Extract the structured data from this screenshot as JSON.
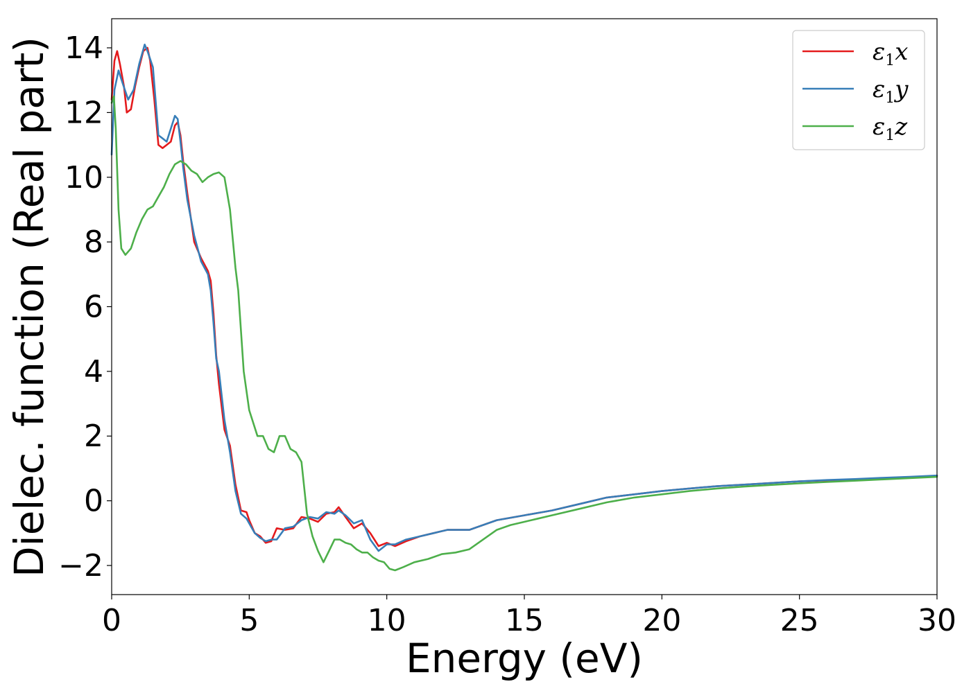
{
  "chart_data": {
    "type": "line",
    "title": "",
    "xlabel": "Energy (eV)",
    "ylabel": "Dielec. function (Real part)",
    "xlim": [
      0,
      30
    ],
    "ylim": [
      -2.9,
      14.9
    ],
    "xticks": [
      0,
      5,
      10,
      15,
      20,
      25,
      30
    ],
    "xtick_labels": [
      "0",
      "5",
      "10",
      "15",
      "20",
      "25",
      "30"
    ],
    "yticks": [
      -2,
      0,
      2,
      4,
      6,
      8,
      10,
      12,
      14
    ],
    "ytick_labels": [
      "−2",
      "0",
      "2",
      "4",
      "6",
      "8",
      "10",
      "12",
      "14"
    ],
    "grid": false,
    "legend_position": "top-right",
    "series": [
      {
        "name": "ε₁x",
        "legend_main": "ε",
        "legend_sub": "1",
        "legend_var": "x",
        "color": "#e41a1c",
        "x": [
          0,
          0.1,
          0.2,
          0.3,
          0.45,
          0.55,
          0.7,
          0.85,
          1.0,
          1.15,
          1.3,
          1.4,
          1.55,
          1.7,
          1.85,
          2.0,
          2.15,
          2.3,
          2.4,
          2.5,
          2.6,
          2.75,
          3.0,
          3.25,
          3.5,
          3.6,
          3.7,
          3.8,
          3.9,
          4.1,
          4.3,
          4.5,
          4.7,
          4.9,
          5.0,
          5.2,
          5.4,
          5.6,
          5.8,
          6.0,
          6.3,
          6.6,
          6.9,
          7.2,
          7.5,
          7.8,
          8.1,
          8.25,
          8.5,
          8.8,
          9.1,
          9.4,
          9.7,
          10.0,
          10.3,
          10.7,
          11.2,
          11.7,
          12.2,
          13.0,
          14.0,
          15.0,
          16.0,
          17.0,
          18.0,
          19.0,
          20.0,
          21.0,
          22.0,
          23.0,
          24.0,
          25.0,
          26.0,
          27.0,
          28.0,
          29.0,
          30.0
        ],
        "y": [
          12.4,
          13.6,
          13.9,
          13.5,
          12.8,
          12.0,
          12.1,
          12.8,
          13.4,
          13.9,
          14.0,
          13.6,
          12.4,
          11.0,
          10.9,
          11.0,
          11.1,
          11.6,
          11.7,
          11.3,
          10.5,
          9.5,
          8.0,
          7.5,
          7.1,
          6.8,
          5.8,
          4.5,
          3.6,
          2.2,
          1.7,
          0.5,
          -0.3,
          -0.35,
          -0.6,
          -1.0,
          -1.1,
          -1.3,
          -1.25,
          -0.85,
          -0.9,
          -0.85,
          -0.5,
          -0.55,
          -0.65,
          -0.4,
          -0.35,
          -0.2,
          -0.5,
          -0.85,
          -0.7,
          -1.0,
          -1.4,
          -1.3,
          -1.4,
          -1.25,
          -1.1,
          -1.0,
          -0.9,
          -0.9,
          -0.6,
          -0.45,
          -0.3,
          -0.1,
          0.1,
          0.2,
          0.3,
          0.38,
          0.45,
          0.5,
          0.55,
          0.6,
          0.63,
          0.66,
          0.7,
          0.73,
          0.77
        ]
      },
      {
        "name": "ε₁y",
        "legend_main": "ε",
        "legend_sub": "1",
        "legend_var": "y",
        "color": "#377eb8",
        "x": [
          0,
          0.1,
          0.25,
          0.4,
          0.6,
          0.8,
          1.0,
          1.2,
          1.3,
          1.5,
          1.7,
          1.85,
          2.0,
          2.15,
          2.3,
          2.4,
          2.5,
          2.6,
          2.75,
          3.0,
          3.25,
          3.5,
          3.6,
          3.7,
          3.8,
          3.9,
          4.1,
          4.3,
          4.5,
          4.7,
          4.9,
          5.0,
          5.2,
          5.4,
          5.6,
          5.8,
          6.0,
          6.3,
          6.6,
          6.9,
          7.2,
          7.5,
          7.8,
          8.1,
          8.25,
          8.5,
          8.8,
          9.1,
          9.4,
          9.7,
          10.0,
          10.3,
          10.7,
          11.2,
          11.7,
          12.2,
          13.0,
          14.0,
          15.0,
          16.0,
          17.0,
          18.0,
          19.0,
          20.0,
          21.0,
          22.0,
          23.0,
          24.0,
          25.0,
          26.0,
          27.0,
          28.0,
          29.0,
          30.0
        ],
        "y": [
          10.7,
          12.7,
          13.3,
          12.9,
          12.4,
          12.7,
          13.5,
          14.1,
          13.9,
          13.4,
          11.3,
          11.2,
          11.1,
          11.5,
          11.9,
          11.8,
          11.1,
          10.3,
          9.3,
          8.2,
          7.4,
          7.0,
          6.5,
          5.5,
          4.4,
          4.0,
          2.5,
          1.5,
          0.3,
          -0.4,
          -0.55,
          -0.7,
          -1.0,
          -1.15,
          -1.25,
          -1.2,
          -1.2,
          -0.85,
          -0.8,
          -0.6,
          -0.5,
          -0.55,
          -0.35,
          -0.4,
          -0.3,
          -0.45,
          -0.7,
          -0.6,
          -1.2,
          -1.55,
          -1.35,
          -1.35,
          -1.2,
          -1.1,
          -1.0,
          -0.9,
          -0.9,
          -0.6,
          -0.45,
          -0.3,
          -0.1,
          0.1,
          0.2,
          0.3,
          0.38,
          0.45,
          0.5,
          0.55,
          0.6,
          0.64,
          0.67,
          0.71,
          0.74,
          0.78
        ]
      },
      {
        "name": "ε₁z",
        "legend_main": "ε",
        "legend_sub": "1",
        "legend_var": "z",
        "color": "#4daf4a",
        "x": [
          0,
          0.08,
          0.15,
          0.25,
          0.35,
          0.5,
          0.7,
          0.9,
          1.1,
          1.3,
          1.5,
          1.7,
          1.9,
          2.1,
          2.3,
          2.5,
          2.7,
          2.9,
          3.1,
          3.3,
          3.5,
          3.7,
          3.9,
          4.1,
          4.3,
          4.5,
          4.6,
          4.8,
          5.0,
          5.3,
          5.5,
          5.7,
          5.9,
          6.1,
          6.3,
          6.5,
          6.7,
          6.9,
          7.1,
          7.3,
          7.5,
          7.7,
          7.9,
          8.1,
          8.3,
          8.5,
          8.7,
          8.9,
          9.1,
          9.3,
          9.5,
          9.7,
          9.9,
          10.1,
          10.3,
          10.6,
          11.0,
          11.5,
          12.0,
          12.5,
          13.0,
          13.5,
          14.0,
          14.5,
          15.0,
          15.5,
          16.0,
          17.0,
          18.0,
          19.0,
          20.0,
          21.0,
          22.0,
          23.0,
          24.0,
          25.0,
          26.0,
          27.0,
          28.0,
          29.0,
          30.0
        ],
        "y": [
          12.3,
          12.5,
          11.5,
          9.0,
          7.8,
          7.6,
          7.8,
          8.3,
          8.7,
          9.0,
          9.1,
          9.4,
          9.7,
          10.1,
          10.4,
          10.5,
          10.4,
          10.2,
          10.1,
          9.85,
          10.0,
          10.1,
          10.15,
          10.0,
          9.0,
          7.2,
          6.5,
          4.0,
          2.8,
          2.0,
          2.0,
          1.6,
          1.5,
          2.0,
          2.0,
          1.6,
          1.5,
          1.2,
          -0.4,
          -1.1,
          -1.55,
          -1.9,
          -1.55,
          -1.2,
          -1.2,
          -1.3,
          -1.35,
          -1.5,
          -1.6,
          -1.6,
          -1.75,
          -1.85,
          -1.9,
          -2.1,
          -2.15,
          -2.05,
          -1.9,
          -1.8,
          -1.65,
          -1.6,
          -1.5,
          -1.2,
          -0.9,
          -0.75,
          -0.65,
          -0.55,
          -0.45,
          -0.25,
          -0.05,
          0.1,
          0.2,
          0.3,
          0.38,
          0.44,
          0.49,
          0.54,
          0.58,
          0.62,
          0.66,
          0.7,
          0.74
        ]
      }
    ]
  }
}
